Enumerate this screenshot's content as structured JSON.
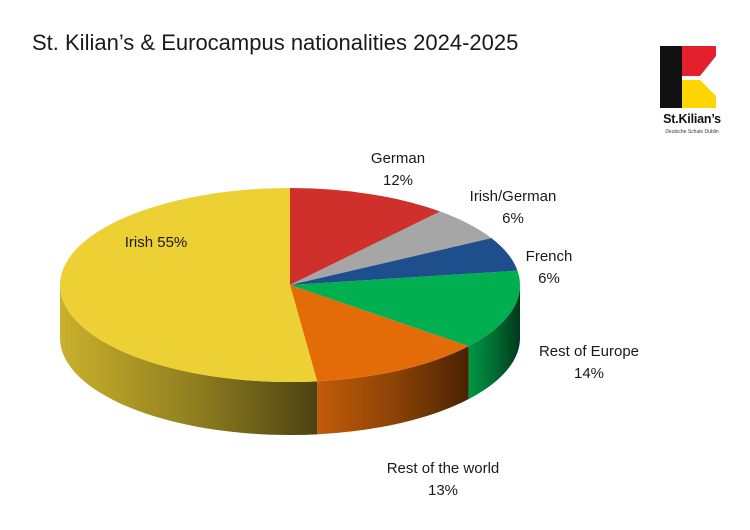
{
  "title": "St. Kilian’s & Eurocampus nationalities 2024-2025",
  "logo": {
    "name": "St.Kilian’s",
    "tagline": "Deutsche Schule Dublin",
    "colors": {
      "black": "#111111",
      "red": "#e3202b",
      "yellow": "#ffd500"
    }
  },
  "chart_data": {
    "type": "pie",
    "style": "3d",
    "slices": [
      {
        "label": "German",
        "value": 12,
        "value_label": "12%",
        "color": "#d0302b"
      },
      {
        "label": "Irish/German",
        "value": 6,
        "value_label": "6%",
        "color": "#a6a6a6"
      },
      {
        "label": "French",
        "value": 6,
        "value_label": "6%",
        "color": "#1f4e8c"
      },
      {
        "label": "Rest of Europe",
        "value": 14,
        "value_label": "14%",
        "color": "#00b050"
      },
      {
        "label": "Rest of the world",
        "value": 13,
        "value_label": "13%",
        "color": "#e36c09"
      },
      {
        "label": "Irish",
        "value": 55,
        "value_label": "55%",
        "color": "#ecd034"
      }
    ]
  }
}
